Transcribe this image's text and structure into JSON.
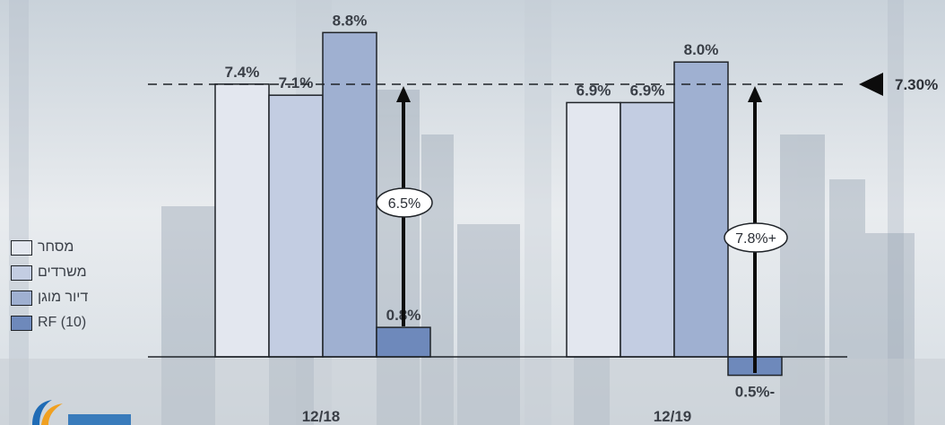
{
  "chart_data": {
    "type": "bar",
    "categories": [
      "12/18",
      "12/19"
    ],
    "series": [
      {
        "name": "מסחר",
        "values": [
          7.4,
          6.9
        ],
        "labels": [
          "7.4%",
          "6.9%"
        ],
        "color": "#e3e7ef"
      },
      {
        "name": "משרדים",
        "values": [
          7.1,
          6.9
        ],
        "labels": [
          "7.1%",
          "6.9%"
        ],
        "color": "#c3cde2"
      },
      {
        "name": "דיור מוגן",
        "values": [
          8.8,
          8.0
        ],
        "labels": [
          "8.8%",
          "8.0%"
        ],
        "color": "#9fb0d1"
      },
      {
        "name": "RF (10)",
        "values": [
          0.8,
          -0.5
        ],
        "labels": [
          "0.8%",
          "0.5%-"
        ],
        "color": "#6e89bb"
      }
    ],
    "reference_line": {
      "value": 7.3,
      "label": "7.30%"
    },
    "spreads": [
      "6.5%",
      "7.8%+"
    ],
    "legend_position": "left"
  },
  "legend": {
    "items": [
      {
        "label": "מסחר",
        "color": "#e3e7ef"
      },
      {
        "label": "משרדים",
        "color": "#c3cde2"
      },
      {
        "label": "דיור מוגן",
        "color": "#9fb0d1"
      },
      {
        "label": "RF (10)",
        "color": "#6e89bb"
      }
    ]
  }
}
